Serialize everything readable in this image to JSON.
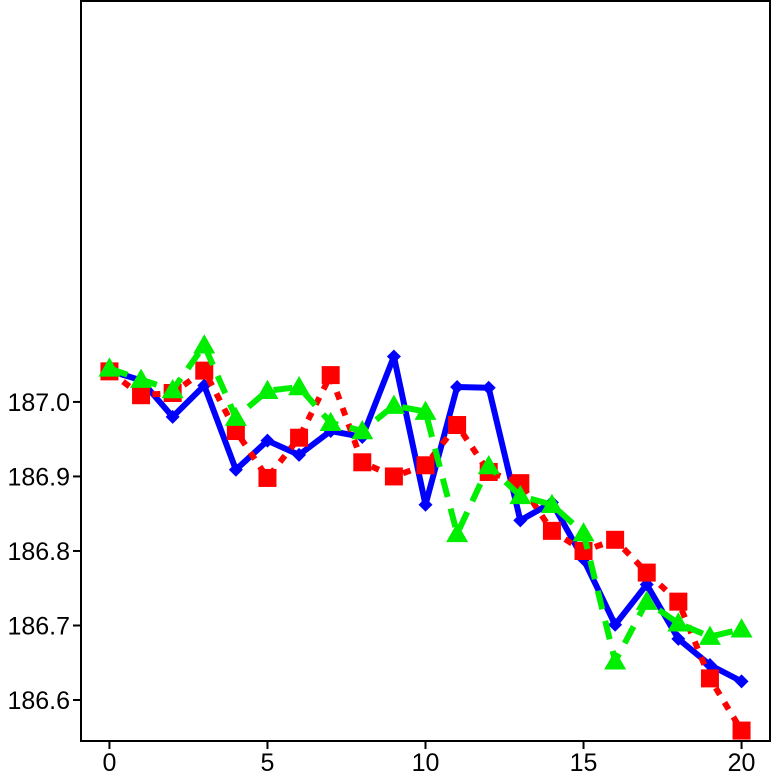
{
  "chart_data": {
    "type": "line",
    "title": "",
    "xlabel": "",
    "ylabel": "",
    "xlim": [
      -0.9,
      20.9
    ],
    "ylim": [
      186.545,
      187.538
    ],
    "x_ticks": [
      0,
      5,
      10,
      15,
      20
    ],
    "y_ticks": [
      186.6,
      186.7,
      186.8,
      186.9,
      187.0
    ],
    "x_tick_labels": [
      "0",
      "5",
      "10",
      "15",
      "20"
    ],
    "y_tick_labels": [
      "186.6",
      "186.7",
      "186.8",
      "186.9",
      "187.0"
    ],
    "grid": false,
    "legend": "none",
    "x": [
      0,
      1,
      2,
      3,
      4,
      5,
      6,
      7,
      8,
      9,
      10,
      11,
      12,
      13,
      14,
      15,
      16,
      17,
      18,
      19,
      20
    ],
    "series": [
      {
        "color": "#0000ff",
        "line_style": "solid",
        "marker": "diamond",
        "values": [
          187.042,
          187.029,
          186.98,
          187.022,
          186.909,
          186.948,
          186.929,
          186.961,
          186.953,
          187.061,
          186.862,
          187.02,
          187.019,
          186.841,
          186.865,
          186.789,
          186.701,
          186.755,
          186.682,
          186.647,
          186.625
        ]
      },
      {
        "color": "#ff0000",
        "line_style": "dotted",
        "marker": "square",
        "values": [
          187.041,
          187.009,
          187.012,
          187.042,
          186.961,
          186.898,
          186.952,
          187.036,
          186.919,
          186.9,
          186.915,
          186.969,
          186.906,
          186.891,
          186.827,
          186.8,
          186.815,
          186.771,
          186.732,
          186.629,
          186.559
        ]
      },
      {
        "color": "#00ee00",
        "line_style": "dashed",
        "marker": "triangle",
        "values": [
          187.045,
          187.03,
          187.016,
          187.076,
          186.979,
          187.015,
          187.02,
          186.972,
          186.961,
          186.995,
          186.987,
          186.823,
          186.914,
          186.874,
          186.862,
          186.824,
          186.652,
          186.732,
          186.703,
          186.685,
          186.695
        ]
      }
    ]
  }
}
